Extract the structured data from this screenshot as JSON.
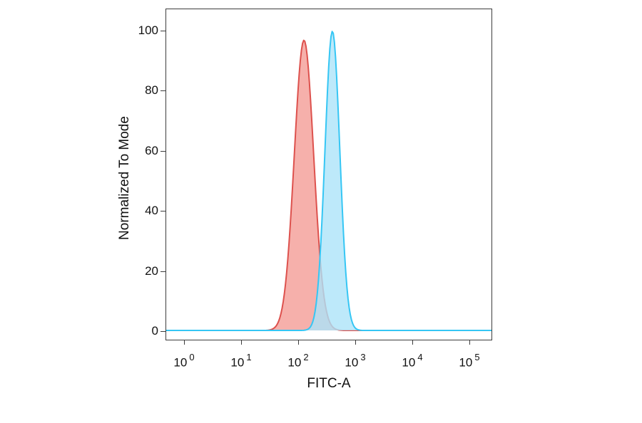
{
  "chart_data": {
    "type": "area",
    "subtype": "flow-cytometry-overlay-histogram",
    "title": "",
    "xlabel": "FITC-A",
    "ylabel": "Normalized To Mode",
    "x_scale": "log10",
    "x_range_log10": [
      -0.325,
      5.4
    ],
    "ylim": [
      0,
      100
    ],
    "y_ticks": [
      0,
      20,
      40,
      60,
      80,
      100
    ],
    "x_tick_base": "10",
    "x_tick_exponents": [
      0,
      1,
      2,
      3,
      4,
      5
    ],
    "grid": false,
    "legend": "none",
    "series": [
      {
        "name": "red-histogram",
        "stroke": "#dd514d",
        "fill": "#f49c96",
        "fill_opacity": 0.8,
        "peak_log10": 2.1,
        "sigma_log10": 0.17,
        "peak_height": 97,
        "points_log10_vs_mode": [
          [
            1.45,
            0.1
          ],
          [
            1.55,
            0.5
          ],
          [
            1.65,
            2.9
          ],
          [
            1.75,
            11.7
          ],
          [
            1.85,
            32.9
          ],
          [
            1.95,
            65.7
          ],
          [
            2.05,
            92.9
          ],
          [
            2.1,
            97.0
          ],
          [
            2.15,
            92.9
          ],
          [
            2.25,
            65.7
          ],
          [
            2.35,
            32.9
          ],
          [
            2.45,
            11.7
          ],
          [
            2.55,
            2.9
          ],
          [
            2.65,
            0.5
          ],
          [
            2.75,
            0.1
          ]
        ]
      },
      {
        "name": "cyan-histogram",
        "stroke": "#35c6f4",
        "fill": "#ade4f9",
        "fill_opacity": 0.8,
        "peak_log10": 2.6,
        "sigma_log10": 0.13,
        "peak_height": 100,
        "points_log10_vs_mode": [
          [
            2.1,
            0.1
          ],
          [
            2.2,
            0.9
          ],
          [
            2.3,
            7.0
          ],
          [
            2.4,
            30.6
          ],
          [
            2.5,
            74.4
          ],
          [
            2.6,
            100.0
          ],
          [
            2.7,
            74.4
          ],
          [
            2.8,
            30.6
          ],
          [
            2.9,
            7.0
          ],
          [
            3.0,
            0.9
          ],
          [
            3.1,
            0.1
          ]
        ]
      }
    ]
  }
}
